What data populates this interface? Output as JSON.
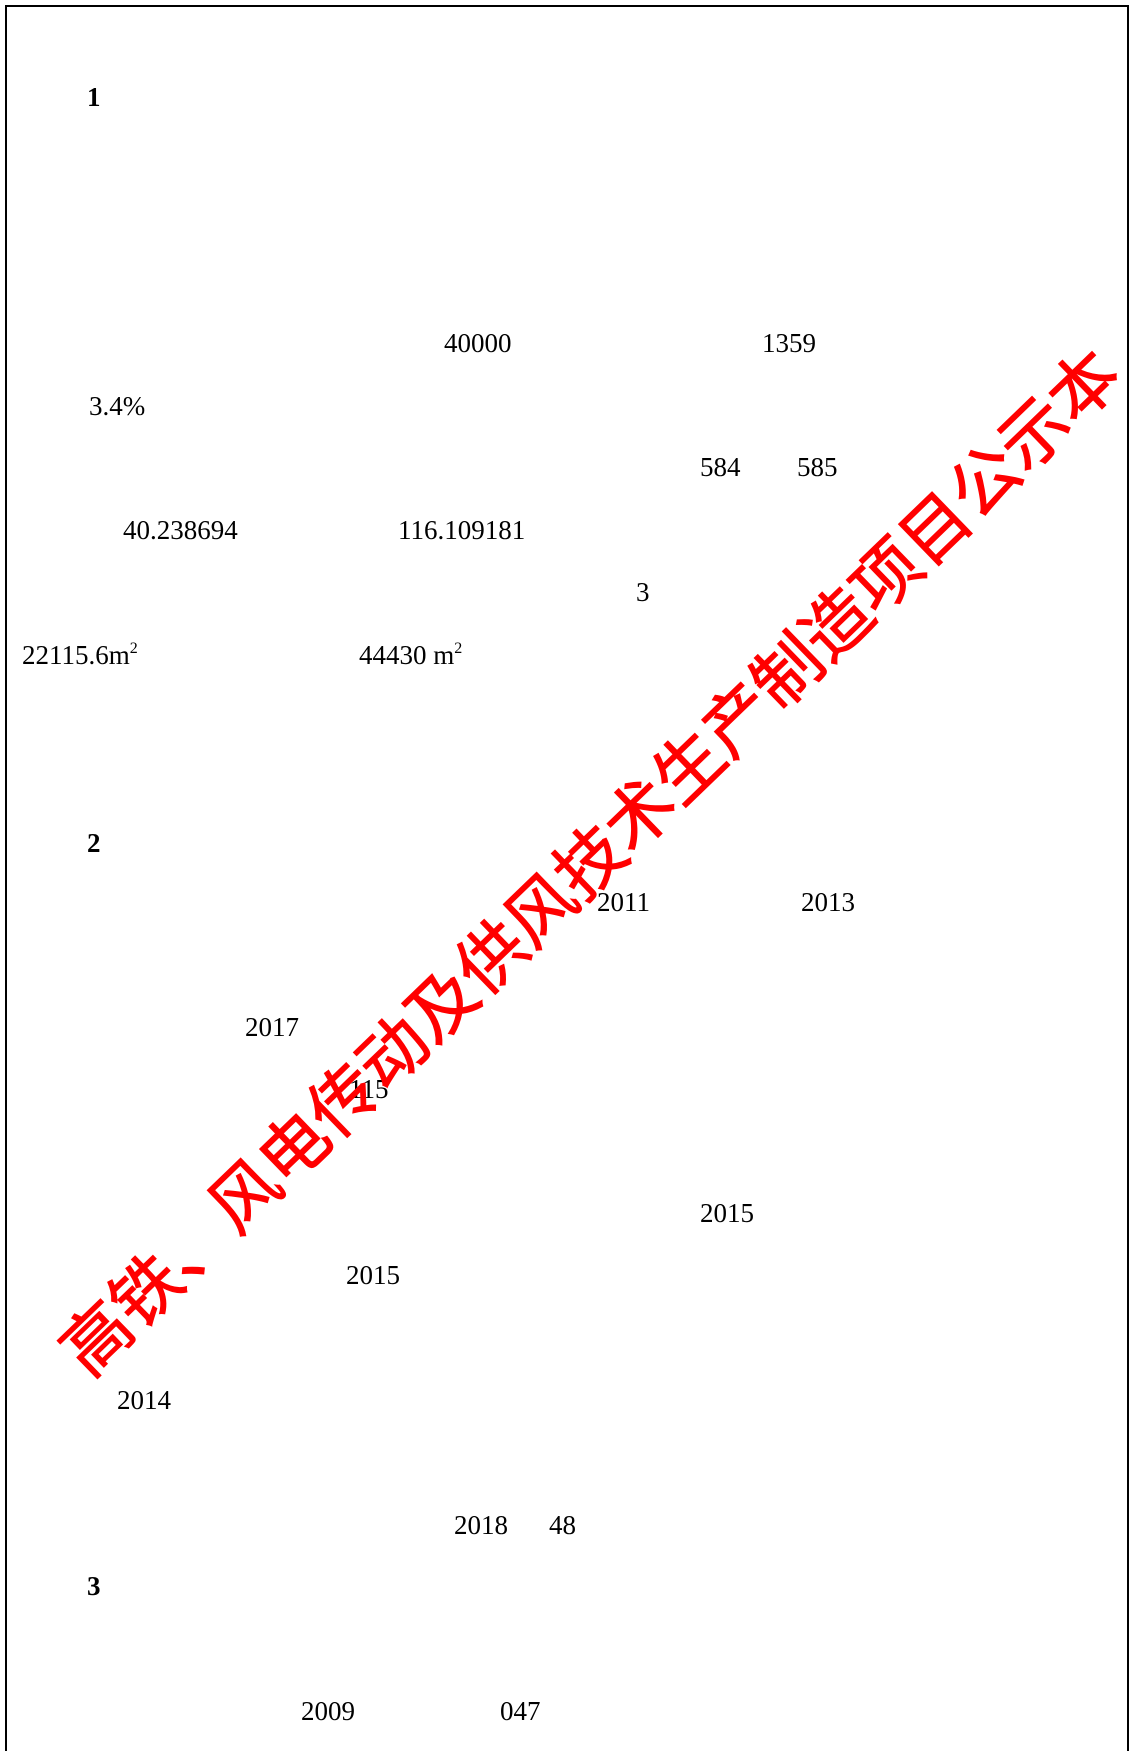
{
  "document": {
    "headings": [
      "1",
      "2",
      "3"
    ],
    "numbers": [
      {
        "text": "40000"
      },
      {
        "text": "1359"
      },
      {
        "text": "3.4%"
      },
      {
        "text": "584"
      },
      {
        "text": "585"
      },
      {
        "text": "40.238694"
      },
      {
        "text": "116.109181"
      },
      {
        "text": "3"
      },
      {
        "text": "22115.6m",
        "sup": "2"
      },
      {
        "text": "44430 m",
        "sup": "2"
      },
      {
        "text": "2011"
      },
      {
        "text": "2013"
      },
      {
        "text": "2017"
      },
      {
        "text": "115"
      },
      {
        "text": "2015"
      },
      {
        "text": "2015"
      },
      {
        "text": "2014"
      },
      {
        "text": "2018"
      },
      {
        "text": "48"
      },
      {
        "text": "2009"
      },
      {
        "text": "047"
      }
    ],
    "watermark": "高铁、风电传动及供风技术生产制造项目公示本"
  }
}
